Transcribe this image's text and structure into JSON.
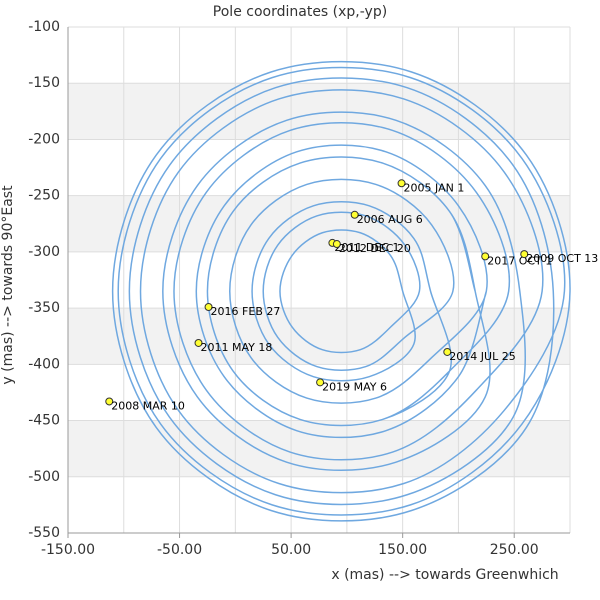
{
  "chart_data": {
    "type": "line",
    "title": "Pole coordinates (xp,-yp)",
    "x_label": "x (mas) --> towards Greenwhich",
    "y_label": "y (mas) --> towards 90°East",
    "xlim": [
      -150,
      300
    ],
    "ylim": [
      -550,
      -100
    ],
    "xticks": [
      {
        "value": -150,
        "label": "-150.00"
      },
      {
        "value": -50,
        "label": "-50.00"
      },
      {
        "value": 50,
        "label": "50.00"
      },
      {
        "value": 150,
        "label": "150.00"
      },
      {
        "value": 250,
        "label": "250.00"
      }
    ],
    "xgrid": [
      -150,
      -100,
      -50,
      0,
      50,
      100,
      150,
      200,
      250,
      300
    ],
    "yticks": [
      -550,
      -500,
      -450,
      -400,
      -350,
      -300,
      -250,
      -200,
      -150,
      -100
    ],
    "grid": true,
    "band_color": "#f2f2f2",
    "series": [
      {
        "color": "#6fa8e0",
        "x": [
          215,
          192,
          132,
          58,
          -2,
          -25,
          -2,
          58,
          132,
          192,
          245,
          216,
          141,
          49,
          -26,
          -55,
          -26,
          49,
          141,
          216,
          275,
          241,
          151,
          39,
          -51,
          -85,
          -51,
          39,
          151,
          241,
          295,
          257,
          157,
          33,
          -67,
          -105,
          -67,
          33,
          157,
          257,
          300,
          261,
          158,
          32,
          -71,
          -110,
          -71,
          32,
          158,
          261,
          285,
          249,
          154,
          36,
          -59,
          -95,
          -59,
          36,
          154,
          249,
          255,
          224,
          144,
          46,
          -34,
          -65,
          -34,
          46,
          144,
          224,
          215,
          192,
          132,
          58,
          -2,
          -25,
          -2,
          58,
          132,
          192,
          175,
          160,
          120,
          70,
          30,
          15,
          30,
          70,
          120,
          160,
          150,
          139,
          112,
          78,
          51,
          40,
          51,
          78,
          112,
          139,
          165,
          152,
          117,
          73,
          38,
          25,
          38,
          73,
          117,
          152,
          195,
          176,
          126,
          64,
          14,
          -5,
          14,
          64,
          126,
          176,
          225,
          200,
          135,
          55,
          -10,
          -35,
          -10,
          55,
          135,
          200,
          225
        ],
        "y": [
          -335,
          -264,
          -221,
          -221,
          -264,
          -335,
          -406,
          -449,
          -449,
          -406,
          -335,
          -247,
          -192,
          -192,
          -247,
          -335,
          -423,
          -478,
          -478,
          -423,
          -335,
          -229,
          -164,
          -164,
          -229,
          -335,
          -441,
          -506,
          -506,
          -441,
          -335,
          -217,
          -145,
          -145,
          -217,
          -335,
          -453,
          -525,
          -525,
          -453,
          -335,
          -214,
          -140,
          -140,
          -214,
          -335,
          -456,
          -530,
          -530,
          -456,
          -335,
          -223,
          -154,
          -154,
          -223,
          -335,
          -447,
          -516,
          -516,
          -447,
          -335,
          -241,
          -183,
          -183,
          -241,
          -335,
          -429,
          -487,
          -487,
          -429,
          -335,
          -264,
          -221,
          -221,
          -264,
          -335,
          -406,
          -449,
          -449,
          -406,
          -335,
          -288,
          -259,
          -259,
          -288,
          -335,
          -382,
          -411,
          -411,
          -382,
          -335,
          -303,
          -283,
          -283,
          -303,
          -335,
          -367,
          -387,
          -387,
          -367,
          -335,
          -294,
          -268,
          -268,
          -294,
          -335,
          -376,
          -402,
          -402,
          -376,
          -335,
          -276,
          -240,
          -240,
          -276,
          -335,
          -394,
          -430,
          -430,
          -394,
          -335,
          -259,
          -211,
          -211,
          -259,
          -335,
          -411,
          -459,
          -459,
          -411,
          -335
        ]
      }
    ],
    "marker_color": "#ffff33",
    "annotations": [
      {
        "label": "2005 JAN 1",
        "x": 149,
        "y": -239
      },
      {
        "label": "2006 AUG 6",
        "x": 107,
        "y": -267
      },
      {
        "label": "2011 DEC 1",
        "x": 87,
        "y": -292
      },
      {
        "label": "2012 DEC 20",
        "x": 91,
        "y": -293
      },
      {
        "label": "2017 OCT 1",
        "x": 224,
        "y": -304
      },
      {
        "label": "2009 OCT 13",
        "x": 259,
        "y": -302
      },
      {
        "label": "2016 FEB 27",
        "x": -24,
        "y": -349
      },
      {
        "label": "2011 MAY 18",
        "x": -33,
        "y": -381
      },
      {
        "label": "2014 JUL 25",
        "x": 190,
        "y": -389
      },
      {
        "label": "2019 MAY 6",
        "x": 76,
        "y": -416
      },
      {
        "label": "2008 MAR 10",
        "x": -113,
        "y": -433
      }
    ]
  }
}
